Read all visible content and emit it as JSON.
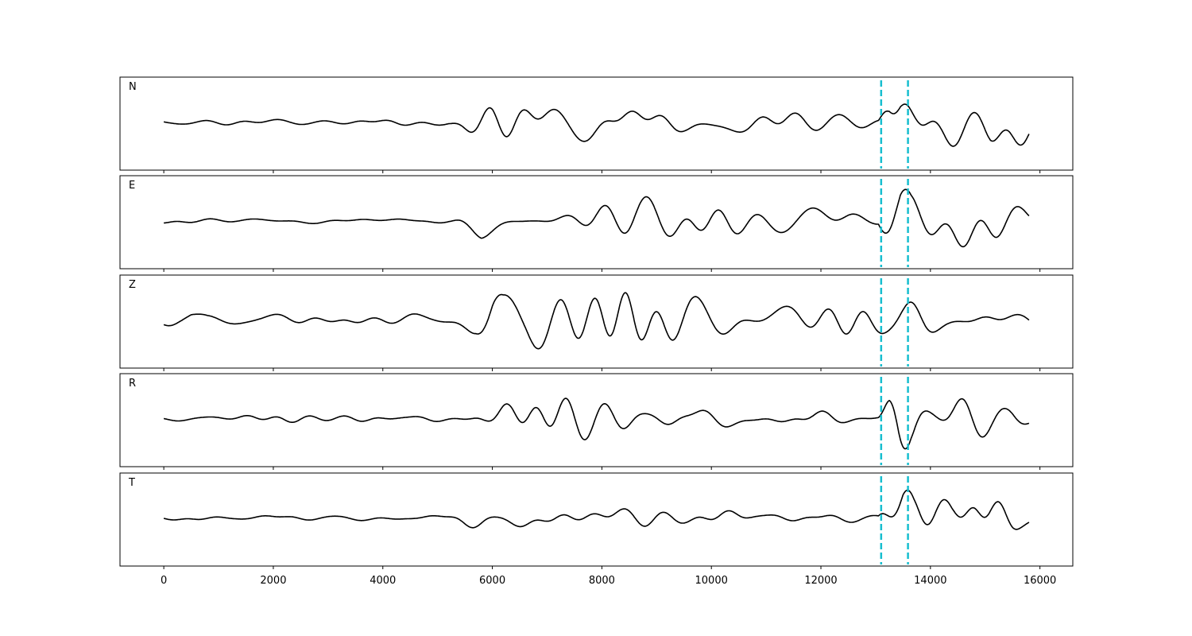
{
  "chart_data": {
    "type": "line",
    "xlim": [
      -800,
      16600
    ],
    "x_ticks": [
      0,
      2000,
      4000,
      6000,
      8000,
      10000,
      12000,
      14000,
      16000
    ],
    "x_tick_labels": [
      "0",
      "2000",
      "4000",
      "6000",
      "8000",
      "10000",
      "12000",
      "14000",
      "16000"
    ],
    "sample_range": [
      0,
      15800
    ],
    "grid": false,
    "marker_color": "#17becf",
    "trace_color": "#000000",
    "vertical_markers": [
      13100,
      13590
    ],
    "panels": [
      {
        "label": "N",
        "envelope": [
          [
            0,
            0.06
          ],
          [
            1500,
            0.06
          ],
          [
            3000,
            0.06
          ],
          [
            5200,
            0.1
          ],
          [
            5600,
            0.3
          ],
          [
            6000,
            0.45
          ],
          [
            6400,
            0.5
          ],
          [
            7500,
            0.5
          ],
          [
            8500,
            0.35
          ],
          [
            9500,
            0.25
          ],
          [
            11000,
            0.2
          ],
          [
            12500,
            0.12
          ],
          [
            13050,
            0.1
          ],
          [
            13250,
            0.8
          ],
          [
            13450,
            1.0
          ],
          [
            13700,
            0.7
          ],
          [
            14200,
            0.6
          ],
          [
            14800,
            0.75
          ],
          [
            15100,
            0.9
          ],
          [
            15500,
            0.6
          ],
          [
            15800,
            0.3
          ]
        ]
      },
      {
        "label": "E",
        "envelope": [
          [
            0,
            0.04
          ],
          [
            3000,
            0.05
          ],
          [
            5200,
            0.1
          ],
          [
            5600,
            0.25
          ],
          [
            5800,
            0.35
          ],
          [
            6300,
            0.3
          ],
          [
            7500,
            0.3
          ],
          [
            8500,
            0.3
          ],
          [
            10000,
            0.25
          ],
          [
            12500,
            0.15
          ],
          [
            13050,
            0.1
          ],
          [
            13300,
            0.8
          ],
          [
            13450,
            1.0
          ],
          [
            13650,
            0.7
          ],
          [
            14200,
            0.5
          ],
          [
            14800,
            0.45
          ],
          [
            15200,
            0.4
          ],
          [
            15800,
            0.2
          ]
        ]
      },
      {
        "label": "Z",
        "envelope": [
          [
            0,
            0.08
          ],
          [
            300,
            0.2
          ],
          [
            500,
            0.35
          ],
          [
            800,
            0.2
          ],
          [
            1500,
            0.15
          ],
          [
            3000,
            0.1
          ],
          [
            4300,
            0.15
          ],
          [
            5300,
            0.25
          ],
          [
            5700,
            0.5
          ],
          [
            6000,
            1.0
          ],
          [
            6200,
            0.7
          ],
          [
            6600,
            0.45
          ],
          [
            7500,
            0.5
          ],
          [
            8500,
            0.5
          ],
          [
            9500,
            0.45
          ],
          [
            11000,
            0.45
          ],
          [
            12500,
            0.4
          ],
          [
            13500,
            0.4
          ],
          [
            14500,
            0.45
          ],
          [
            15200,
            0.45
          ],
          [
            15800,
            0.3
          ]
        ]
      },
      {
        "label": "R",
        "envelope": [
          [
            0,
            0.05
          ],
          [
            3000,
            0.05
          ],
          [
            5200,
            0.1
          ],
          [
            5800,
            0.3
          ],
          [
            6200,
            0.35
          ],
          [
            7500,
            0.3
          ],
          [
            8500,
            0.3
          ],
          [
            10000,
            0.2
          ],
          [
            12500,
            0.12
          ],
          [
            13050,
            0.1
          ],
          [
            13250,
            0.8
          ],
          [
            13420,
            1.0
          ],
          [
            13650,
            0.7
          ],
          [
            14200,
            0.55
          ],
          [
            14800,
            0.45
          ],
          [
            15500,
            0.35
          ],
          [
            15800,
            0.15
          ]
        ]
      },
      {
        "label": "T",
        "envelope": [
          [
            0,
            0.05
          ],
          [
            2000,
            0.06
          ],
          [
            4000,
            0.06
          ],
          [
            5200,
            0.1
          ],
          [
            5800,
            0.2
          ],
          [
            7500,
            0.25
          ],
          [
            8200,
            0.3
          ],
          [
            9500,
            0.2
          ],
          [
            11000,
            0.15
          ],
          [
            12500,
            0.1
          ],
          [
            13050,
            0.1
          ],
          [
            13250,
            0.7
          ],
          [
            13500,
            1.0
          ],
          [
            13700,
            0.7
          ],
          [
            14400,
            0.55
          ],
          [
            14800,
            0.85
          ],
          [
            15100,
            0.85
          ],
          [
            15500,
            0.6
          ],
          [
            15800,
            0.3
          ]
        ]
      }
    ]
  }
}
